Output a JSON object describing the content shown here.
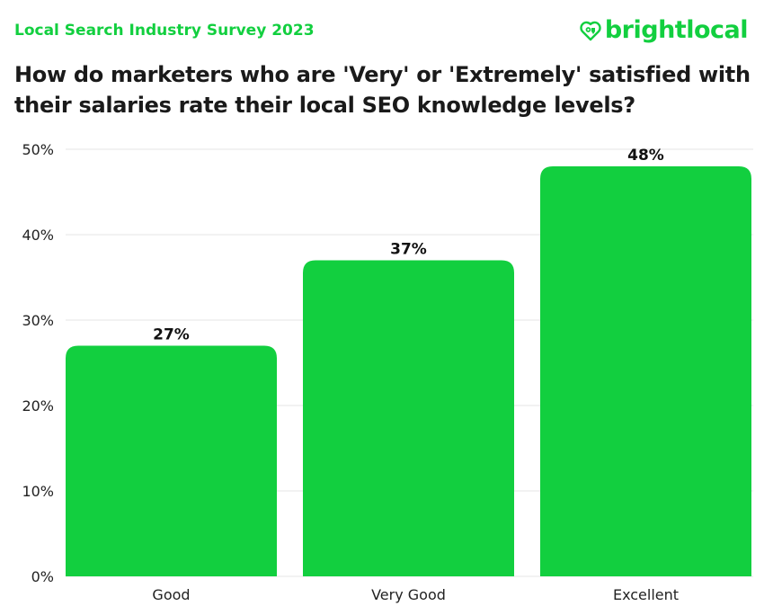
{
  "header": {
    "subtitle": "Local Search Industry Survey 2023",
    "title": "How do marketers who are 'Very' or 'Extremely' satisfied with their salaries rate their local SEO knowledge levels?",
    "logo": {
      "text": "brightlocal",
      "icon": "heart-pin-icon"
    }
  },
  "colors": {
    "bar": "#12cf3f",
    "brand": "#12cf3f",
    "grid": "#e6e6e6"
  },
  "chart_data": {
    "type": "bar",
    "title": "How do marketers who are 'Very' or 'Extremely' satisfied with their salaries rate their local SEO knowledge levels?",
    "categories": [
      "Good",
      "Very Good",
      "Excellent"
    ],
    "values": [
      27,
      37,
      48
    ],
    "data_labels": [
      "27%",
      "37%",
      "48%"
    ],
    "xlabel": "",
    "ylabel": "",
    "ylim": [
      0,
      50
    ],
    "yticks": [
      0,
      10,
      20,
      30,
      40,
      50
    ],
    "ytick_labels": [
      "0%",
      "10%",
      "20%",
      "30%",
      "40%",
      "50%"
    ],
    "grid": true,
    "legend": "none"
  }
}
